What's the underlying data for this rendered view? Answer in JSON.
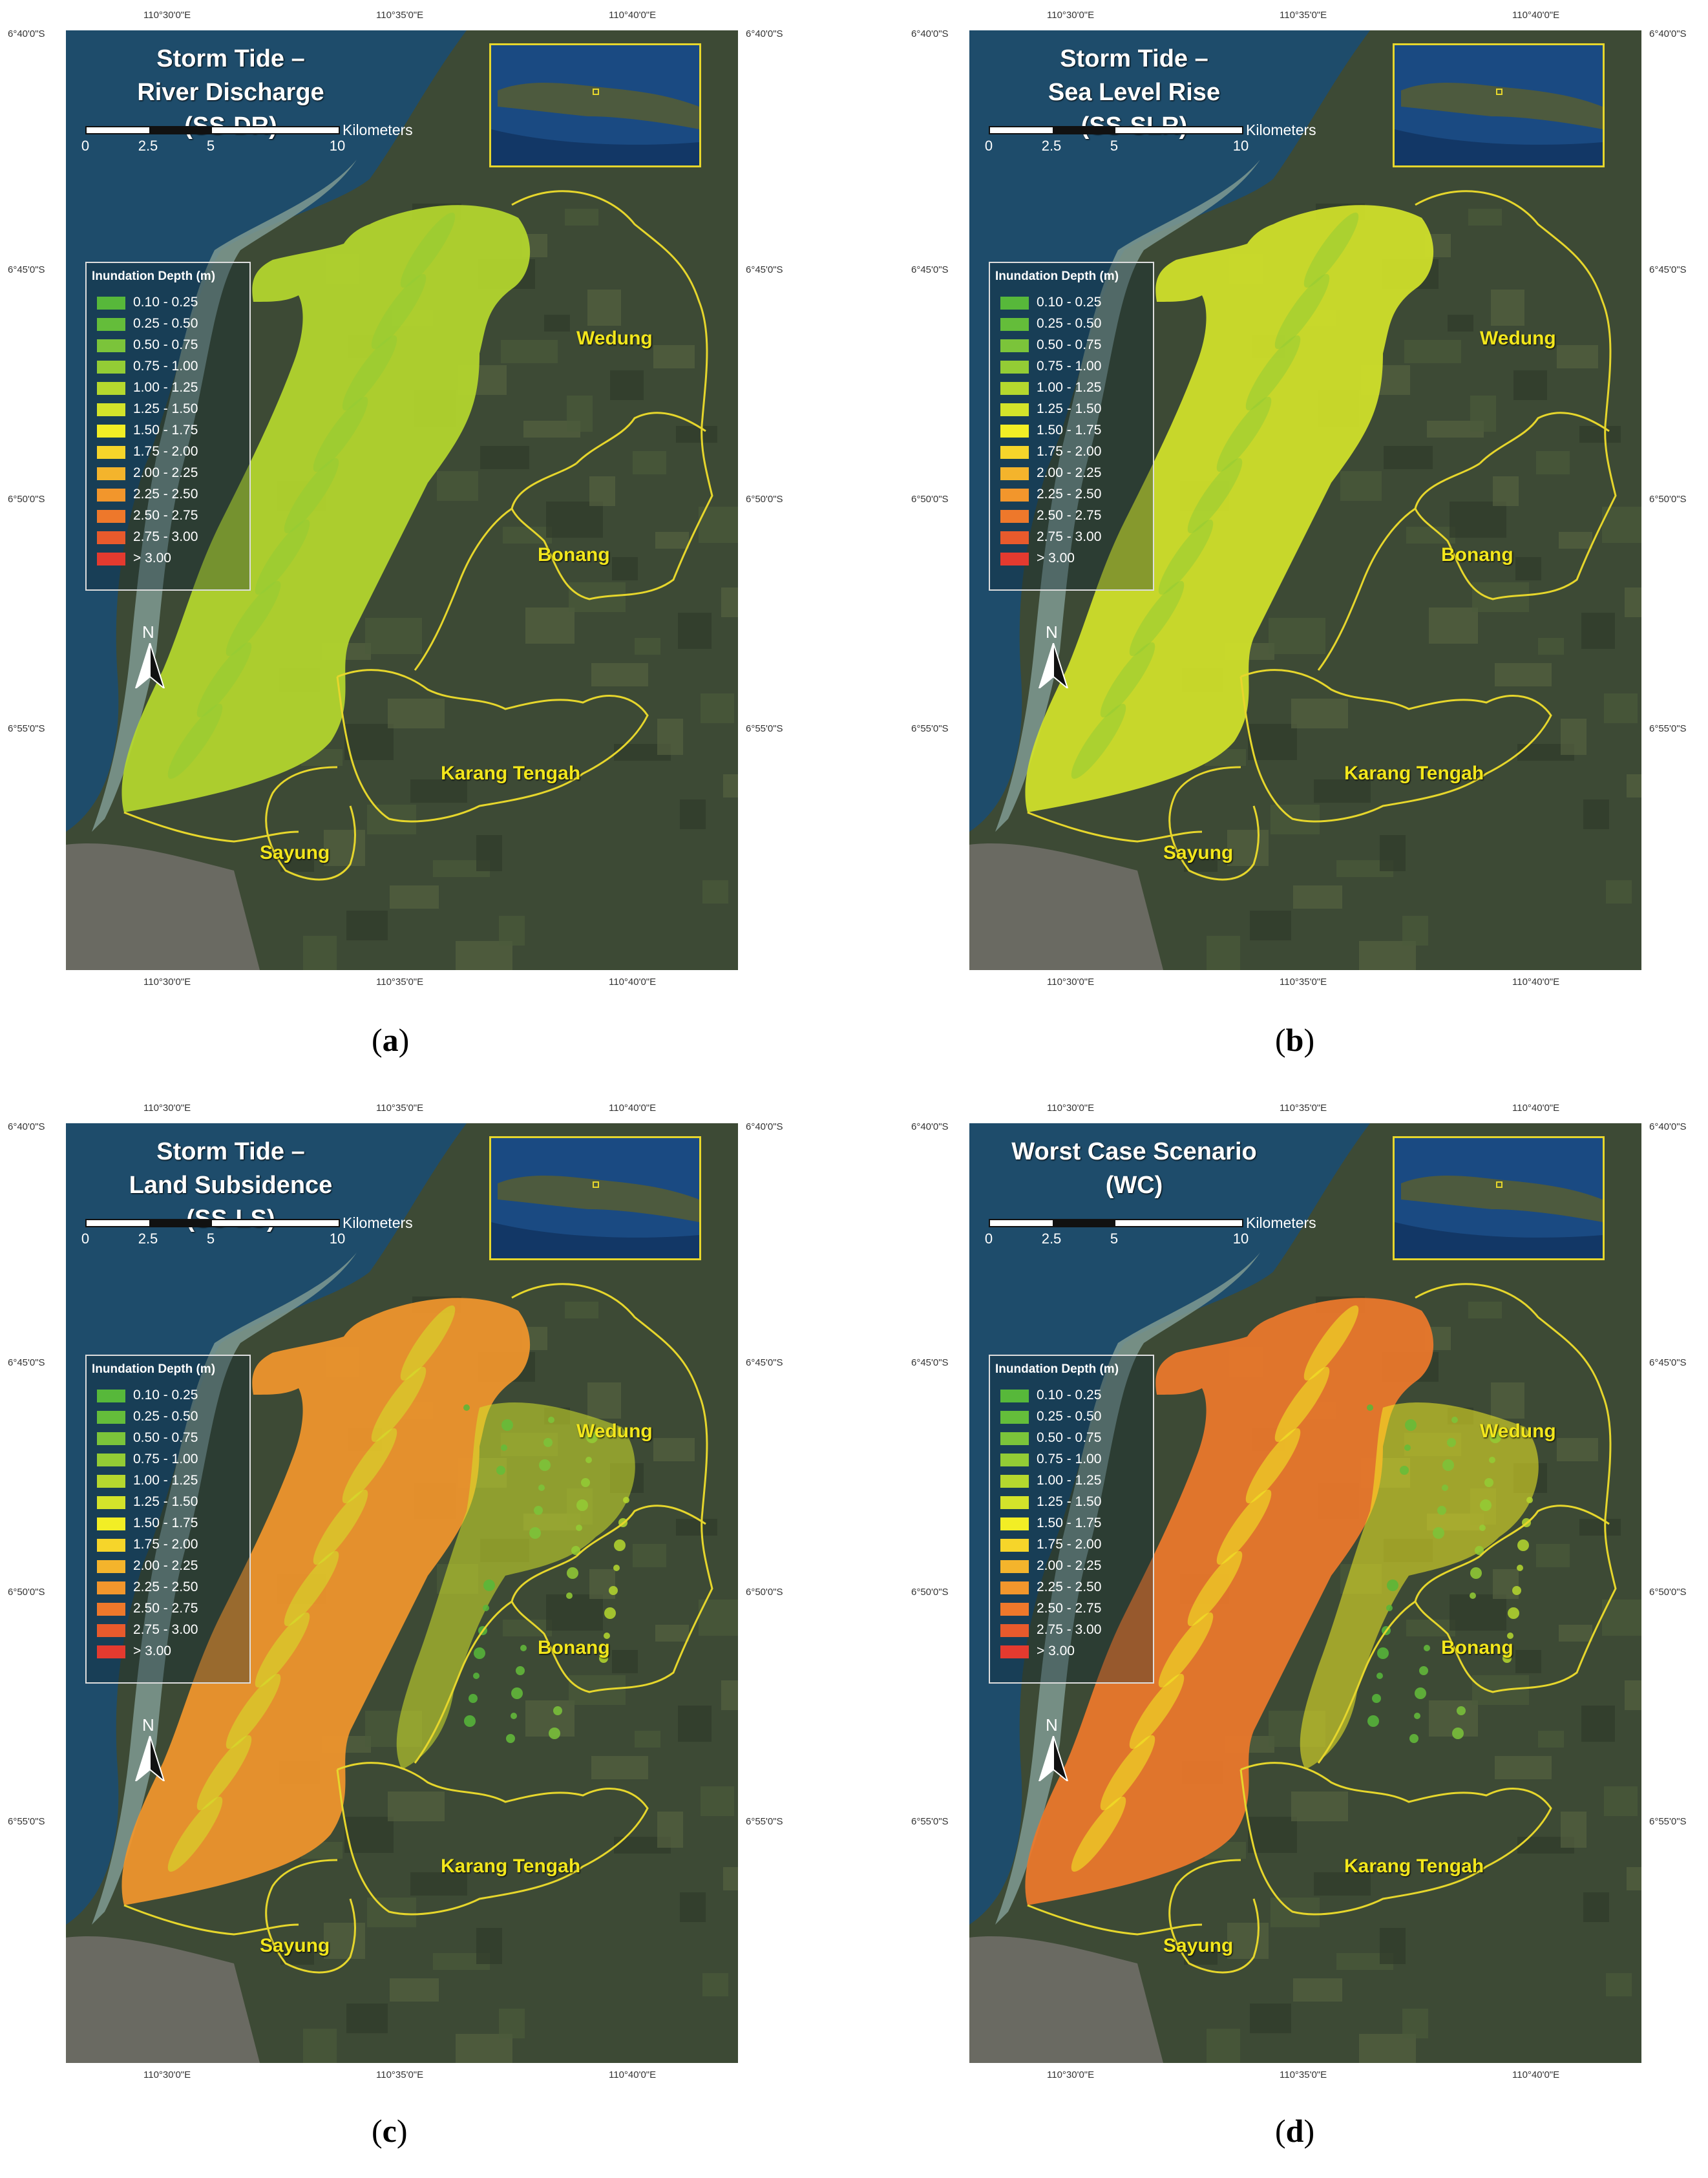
{
  "colors": {
    "legend": [
      "#57b83a",
      "#64bd3a",
      "#7bc43a",
      "#93cc35",
      "#b5d82e",
      "#d3e32a",
      "#f2ee25",
      "#f6d52a",
      "#f4b42c",
      "#f2962c",
      "#ee782b",
      "#e85a2c",
      "#e43a2f"
    ],
    "region_boundary": "#e6d62c",
    "region_label": "#f2e61c",
    "sea": "#1e4c6b",
    "land": "#3d4a35"
  },
  "legend": {
    "title": "Inundation Depth (m)",
    "items": [
      "0.10 - 0.25",
      "0.25 - 0.50",
      "0.50 - 0.75",
      "0.75 - 1.00",
      "1.00 - 1.25",
      "1.25 - 1.50",
      "1.50 - 1.75",
      "1.75 - 2.00",
      "2.00 - 2.25",
      "2.25 - 2.50",
      "2.50 - 2.75",
      "2.75 - 3.00",
      "> 3.00"
    ]
  },
  "scalebar": {
    "ticks": [
      "0",
      "2.5",
      "5",
      "10"
    ],
    "unit": "Kilometers"
  },
  "north_label": "N",
  "regions": [
    "Wedung",
    "Bonang",
    "Karang Tengah",
    "Sayung"
  ],
  "coords": {
    "lon": [
      "110°30'0\"E",
      "110°35'0\"E",
      "110°40'0\"E"
    ],
    "lat": [
      "6°40'0\"S",
      "6°45'0\"S",
      "6°50'0\"S",
      "6°55'0\"S"
    ]
  },
  "panels": [
    {
      "id": "a",
      "title_lines": [
        "Storm Tide –",
        "River Discharge",
        "(SS-DR)"
      ],
      "caption_letter": "a",
      "depth_class": {
        "main": "1.00 - 1.25",
        "secondary": "0.75 - 1.00"
      },
      "inland_fringe": false
    },
    {
      "id": "b",
      "title_lines": [
        "Storm Tide –",
        "Sea Level Rise",
        "(SS-SLR)"
      ],
      "caption_letter": "b",
      "depth_class": {
        "main": "1.25 - 1.50",
        "secondary": "0.75 - 1.00"
      },
      "inland_fringe": false
    },
    {
      "id": "c",
      "title_lines": [
        "Storm Tide –",
        "Land Subsidence",
        "(SS-LS)"
      ],
      "caption_letter": "c",
      "depth_class": {
        "main": "2.25 - 2.50",
        "secondary": "1.25 - 1.50"
      },
      "inland_fringe": true
    },
    {
      "id": "d",
      "title_lines": [
        "Worst Case Scenario",
        "(WC)"
      ],
      "caption_letter": "d",
      "depth_class": {
        "main": "2.50 - 2.75",
        "secondary": "1.50 - 1.75"
      },
      "inland_fringe": true
    }
  ]
}
